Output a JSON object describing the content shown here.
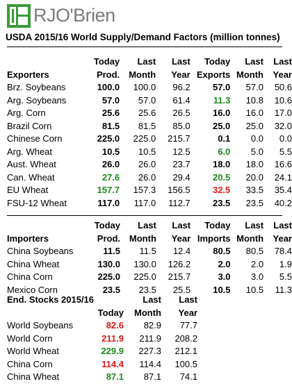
{
  "brand": {
    "name": "RJO'Brien"
  },
  "title": "USDA 2015/16 World Supply/Demand Factors (million tonnes)",
  "colors": {
    "green": "#1a8a1a",
    "red": "#e01818",
    "logo_green": "#3a9a3a",
    "logo_gray": "#7a7a7a"
  },
  "exporters": {
    "hdr1": [
      "",
      "Today",
      "Last",
      "Last",
      "Today",
      "Last",
      "Last"
    ],
    "hdr2": [
      "Exporters",
      "Prod.",
      "Month",
      "Year",
      "Exports",
      "Month",
      "Year"
    ],
    "rows": [
      {
        "name": "Brz. Soybeans",
        "v": [
          "100.0",
          "100.0",
          "96.2",
          "57.0",
          "57.0",
          "50.6"
        ],
        "c1": "",
        "c4": ""
      },
      {
        "name": "Arg. Soybeans",
        "v": [
          "57.0",
          "57.0",
          "61.4",
          "11.3",
          "10.8",
          "10.6"
        ],
        "c1": "",
        "c4": "green"
      },
      {
        "name": "Arg. Corn",
        "v": [
          "25.6",
          "25.6",
          "26.5",
          "16.0",
          "16.0",
          "17.0"
        ],
        "c1": "",
        "c4": ""
      },
      {
        "name": "Brazil Corn",
        "v": [
          "81.5",
          "81.5",
          "85.0",
          "25.0",
          "25.0",
          "32.0"
        ],
        "c1": "",
        "c4": ""
      },
      {
        "name": "Chinese Corn",
        "v": [
          "225.0",
          "225.0",
          "215.7",
          "0.1",
          "0.0",
          "0.0"
        ],
        "c1": "",
        "c4": ""
      },
      {
        "name": "Arg. Wheat",
        "v": [
          "10.5",
          "10.5",
          "12.5",
          "6.0",
          "5.0",
          "5.5"
        ],
        "c1": "",
        "c4": "green"
      },
      {
        "name": "Aust. Wheat",
        "v": [
          "26.0",
          "26.0",
          "23.7",
          "18.0",
          "18.0",
          "16.6"
        ],
        "c1": "",
        "c4": ""
      },
      {
        "name": "Can. Wheat",
        "v": [
          "27.6",
          "26.0",
          "29.4",
          "20.5",
          "20.0",
          "24.1"
        ],
        "c1": "green",
        "c4": "green"
      },
      {
        "name": "EU Wheat",
        "v": [
          "157.7",
          "157.3",
          "156.5",
          "32.5",
          "33.5",
          "35.4"
        ],
        "c1": "green",
        "c4": "red"
      },
      {
        "name": "FSU-12 Wheat",
        "v": [
          "117.0",
          "117.0",
          "112.7",
          "23.5",
          "23.5",
          "40.2"
        ],
        "c1": "",
        "c4": ""
      }
    ]
  },
  "importers": {
    "hdr1": [
      "",
      "Today",
      "Last",
      "Last",
      "Today",
      "Last",
      "Last"
    ],
    "hdr2": [
      "Importers",
      "Prod.",
      "Month",
      "Year",
      "Imports",
      "Month",
      "Year"
    ],
    "rows": [
      {
        "name": "China Soybeans",
        "v": [
          "11.5",
          "11.5",
          "12.4",
          "80.5",
          "80.5",
          "78.4"
        ],
        "c1": "",
        "c4": ""
      },
      {
        "name": "China Wheat",
        "v": [
          "130.0",
          "130.0",
          "126.2",
          "2.0",
          "2.0",
          "1.9"
        ],
        "c1": "",
        "c4": ""
      },
      {
        "name": "China Corn",
        "v": [
          "225.0",
          "225.0",
          "215.7",
          "3.0",
          "3.0",
          "5.5"
        ],
        "c1": "",
        "c4": ""
      },
      {
        "name": "Mexico Corn",
        "v": [
          "23.5",
          "23.5",
          "25.5",
          "10.5",
          "10.5",
          "11.3"
        ],
        "c1": "",
        "c4": ""
      }
    ]
  },
  "stocks": {
    "hdr1": [
      "End. Stocks 2015/16",
      "",
      "Last",
      "Last"
    ],
    "hdr2": [
      "",
      "Today",
      "Month",
      "Year"
    ],
    "rows": [
      {
        "name": "World Soybeans",
        "v": [
          "82.6",
          "82.9",
          "77.7"
        ],
        "c1": "red"
      },
      {
        "name": "World Corn",
        "v": [
          "211.9",
          "211.9",
          "208.2"
        ],
        "c1": "red"
      },
      {
        "name": "World Wheat",
        "v": [
          "229.9",
          "227.3",
          "212.1"
        ],
        "c1": "green"
      },
      {
        "name": "China Corn",
        "v": [
          "114.4",
          "114.4",
          "100.5"
        ],
        "c1": "red"
      },
      {
        "name": "China Wheat",
        "v": [
          "87.1",
          "87.1",
          "74.1"
        ],
        "c1": "green"
      }
    ]
  }
}
